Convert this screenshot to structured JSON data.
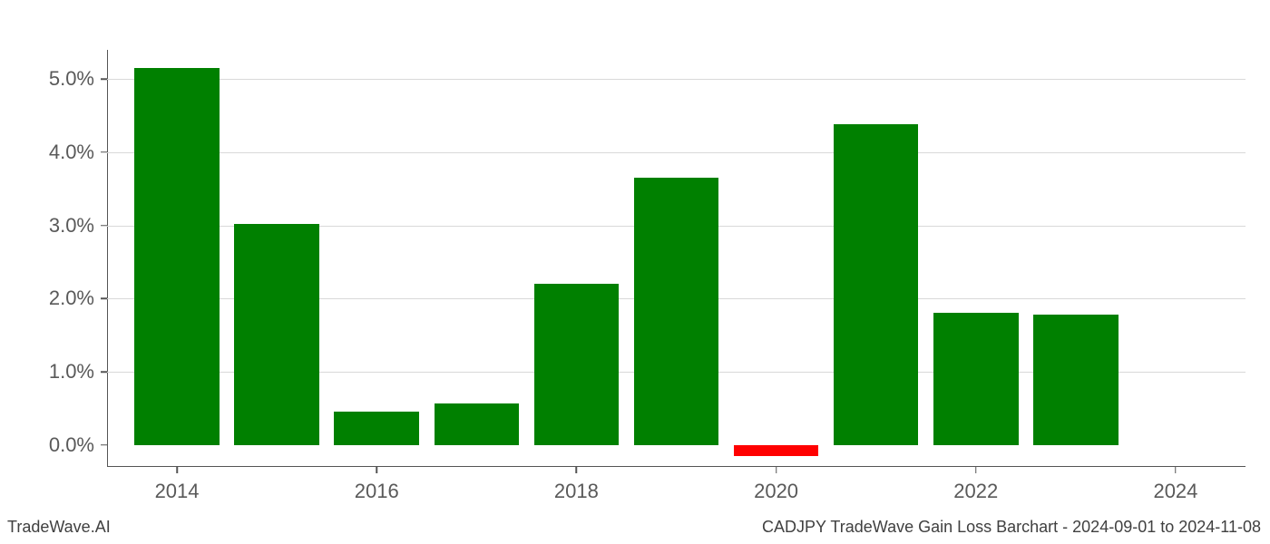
{
  "chart": {
    "type": "bar",
    "background_color": "#ffffff",
    "grid_color": "#d9d9d9",
    "axis_color": "#555555",
    "tick_label_color": "#595959",
    "tick_label_fontsize": 22,
    "positive_color": "#008000",
    "negative_color": "#ff0000",
    "bar_width_years": 0.85,
    "x_range": [
      2013.3,
      2024.7
    ],
    "x_ticks": [
      2014,
      2016,
      2018,
      2020,
      2022,
      2024
    ],
    "x_tick_labels": [
      "2014",
      "2016",
      "2018",
      "2020",
      "2022",
      "2024"
    ],
    "y_range": [
      -0.3,
      5.4
    ],
    "y_ticks": [
      0,
      1,
      2,
      3,
      4,
      5
    ],
    "y_tick_labels": [
      "0.0%",
      "1.0%",
      "2.0%",
      "3.0%",
      "4.0%",
      "5.0%"
    ],
    "years": [
      2014,
      2015,
      2016,
      2017,
      2018,
      2019,
      2020,
      2021,
      2022,
      2023
    ],
    "values": [
      5.15,
      3.02,
      0.45,
      0.57,
      2.2,
      3.65,
      -0.15,
      4.38,
      1.81,
      1.78
    ]
  },
  "watermark": "TradeWave.AI",
  "caption": "CADJPY TradeWave Gain Loss Barchart - 2024-09-01 to 2024-11-08"
}
